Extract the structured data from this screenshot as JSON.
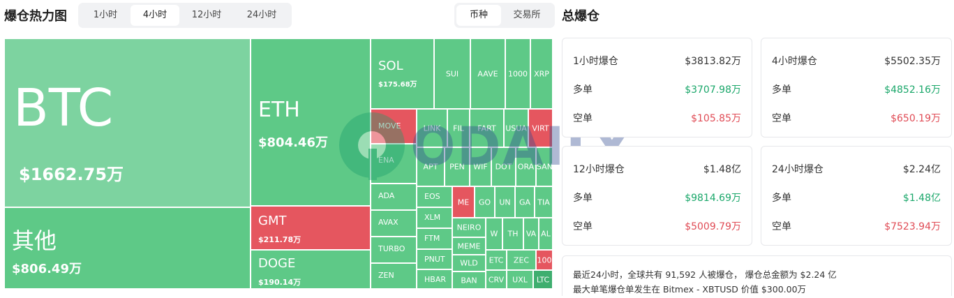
{
  "header": {
    "title": "爆仓热力图",
    "time_tabs": [
      "1小时",
      "4小时",
      "12小时",
      "24小时"
    ],
    "active_time_tab": "4小时",
    "view_tabs": [
      "币种",
      "交易所"
    ],
    "active_view_tab": "币种"
  },
  "treemap": {
    "colors": {
      "long": "#5ec987",
      "long_light": "#7dd3a0",
      "short": "#e5565f"
    },
    "big": {
      "btc": {
        "symbol": "BTC",
        "value": "$1662.75万"
      },
      "other": {
        "symbol": "其他",
        "value": "$806.49万"
      },
      "eth": {
        "symbol": "ETH",
        "value": "$804.46万"
      },
      "gmt": {
        "symbol": "GMT",
        "value": "$211.78万"
      },
      "doge": {
        "symbol": "DOGE",
        "value": "$190.14万"
      },
      "sol": {
        "symbol": "SOL",
        "value": "$175.68万"
      }
    },
    "small": {
      "sui": "SUI",
      "aave": "AAVE",
      "n1000": "1000",
      "xrp": "XRP",
      "move": "MOVE",
      "link": "LINK",
      "fil": "FIL",
      "fart": "FART",
      "usua": "USUA",
      "virt": "VIRT",
      "ena": "ENA",
      "apt": "APT",
      "pen": "PEN",
      "wif": "WIF",
      "dot": "DOT",
      "ora": "ORA",
      "san": "SAN",
      "ada": "ADA",
      "eos": "EOS",
      "me": "ME",
      "go": "GO",
      "uni": "UN",
      "ga": "GA",
      "tia": "TIA",
      "xlm": "XLM",
      "avax": "AVAX",
      "neiro": "NEIRO",
      "w": "W",
      "th": "TH",
      "va": "VA",
      "al": "AL",
      "ftm": "FTM",
      "memes": "MEME",
      "turbo": "TURBO",
      "pnut": "PNUT",
      "wld": "WLD",
      "etc": "ETC",
      "zec": "ZEC",
      "n1002": "100",
      "zen": "ZEN",
      "hbar": "HBAR",
      "ban": "BAN",
      "crv": "CRV",
      "uxl": "UXL",
      "ltc": "LTC"
    }
  },
  "watermark": {
    "text": "ODAILY"
  },
  "total": {
    "title": "总爆仓",
    "cards": [
      {
        "name": "1小时爆仓",
        "total": "$3813.82万",
        "long_label": "多单",
        "long": "$3707.98万",
        "short_label": "空单",
        "short": "$105.85万"
      },
      {
        "name": "4小时爆仓",
        "total": "$5502.35万",
        "long_label": "多单",
        "long": "$4852.16万",
        "short_label": "空单",
        "short": "$650.19万"
      },
      {
        "name": "12小时爆仓",
        "total": "$1.48亿",
        "long_label": "多单",
        "long": "$9814.69万",
        "short_label": "空单",
        "short": "$5009.79万"
      },
      {
        "name": "24小时爆仓",
        "total": "$2.24亿",
        "long_label": "多单",
        "long": "$1.48亿",
        "short_label": "空单",
        "short": "$7523.94万"
      }
    ],
    "summary_line1": "最近24小时，全球共有 91,592 人被爆仓， 爆仓总金额为 $2.24 亿",
    "summary_line2": "最大单笔爆仓单发生在 Bitmex - XBTUSD 价值 $300.00万"
  }
}
